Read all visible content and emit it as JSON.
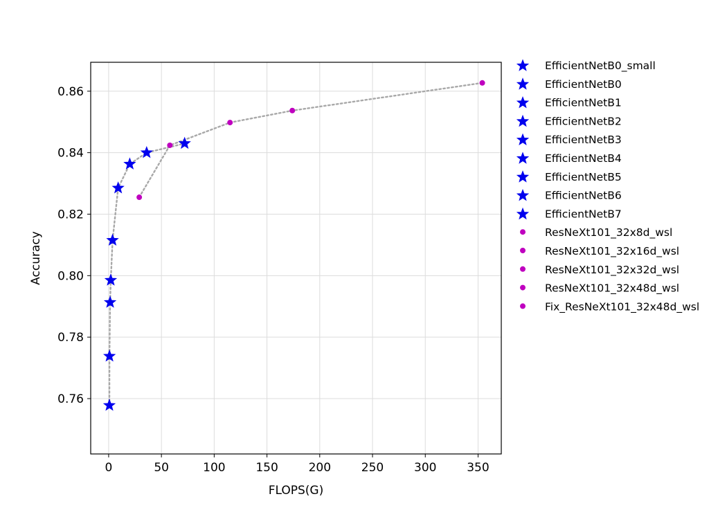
{
  "chart_data": {
    "type": "scatter",
    "xlabel": "FLOPS(G)",
    "ylabel": "Accuracy",
    "xlim": [
      -17,
      372
    ],
    "ylim": [
      0.742,
      0.8694
    ],
    "xticks": [
      0,
      50,
      100,
      150,
      200,
      250,
      300,
      350
    ],
    "yticks": [
      0.76,
      0.78,
      0.8,
      0.82,
      0.84,
      0.86
    ],
    "xtick_labels": [
      "0",
      "50",
      "100",
      "150",
      "200",
      "250",
      "300",
      "350"
    ],
    "ytick_labels": [
      "0.76",
      "0.78",
      "0.80",
      "0.82",
      "0.84",
      "0.86"
    ],
    "grid": true,
    "legend_position": "outside-right",
    "colors": {
      "efficientnet": "#0000ee",
      "resnext": "#bf00bf",
      "trend_line": "#a8a8a8",
      "grid": "#dcdcdc"
    },
    "series": [
      {
        "name": "EfficientNetB0_small",
        "marker": "star",
        "x": 0.7,
        "y": 0.7578
      },
      {
        "name": "EfficientNetB0",
        "marker": "star",
        "x": 0.8,
        "y": 0.7738
      },
      {
        "name": "EfficientNetB1",
        "marker": "star",
        "x": 1.4,
        "y": 0.7913
      },
      {
        "name": "EfficientNetB2",
        "marker": "star",
        "x": 2.0,
        "y": 0.7985
      },
      {
        "name": "EfficientNetB3",
        "marker": "star",
        "x": 3.7,
        "y": 0.8115
      },
      {
        "name": "EfficientNetB4",
        "marker": "star",
        "x": 9.0,
        "y": 0.8285
      },
      {
        "name": "EfficientNetB5",
        "marker": "star",
        "x": 20.0,
        "y": 0.8363
      },
      {
        "name": "EfficientNetB6",
        "marker": "star",
        "x": 36.0,
        "y": 0.84
      },
      {
        "name": "EfficientNetB7",
        "marker": "star",
        "x": 72.0,
        "y": 0.843
      },
      {
        "name": "ResNeXt101_32x8d_wsl",
        "marker": "circle",
        "x": 29.0,
        "y": 0.8255
      },
      {
        "name": "ResNeXt101_32x16d_wsl",
        "marker": "circle",
        "x": 58.0,
        "y": 0.8424
      },
      {
        "name": "ResNeXt101_32x32d_wsl",
        "marker": "circle",
        "x": 115.0,
        "y": 0.8498
      },
      {
        "name": "ResNeXt101_32x48d_wsl",
        "marker": "circle",
        "x": 174.0,
        "y": 0.8537
      },
      {
        "name": "Fix_ResNeXt101_32x48d_wsl",
        "marker": "circle",
        "x": 354.0,
        "y": 0.8627
      }
    ]
  }
}
